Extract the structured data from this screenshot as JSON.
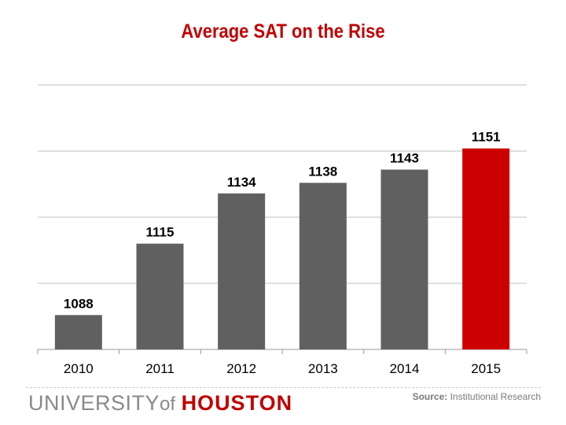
{
  "chart_data": {
    "type": "bar",
    "title": "Average SAT on the Rise",
    "categories": [
      "2010",
      "2011",
      "2012",
      "2013",
      "2014",
      "2015"
    ],
    "values": [
      1088,
      1115,
      1134,
      1138,
      1143,
      1151
    ],
    "ylim": [
      1075,
      1175
    ],
    "grid": true,
    "gridlines": [
      1100,
      1125,
      1150,
      1175
    ],
    "xlabel": "",
    "ylabel": "",
    "colors": {
      "default": "#606060",
      "highlight": "#cc0000"
    },
    "highlight_index": 5,
    "data_labels": true
  },
  "footer": {
    "logo_university": "UNIVERSITY",
    "logo_of": "of",
    "logo_houston": "HOUSTON",
    "source_label": "Source:",
    "source_text": "Institutional Research"
  }
}
